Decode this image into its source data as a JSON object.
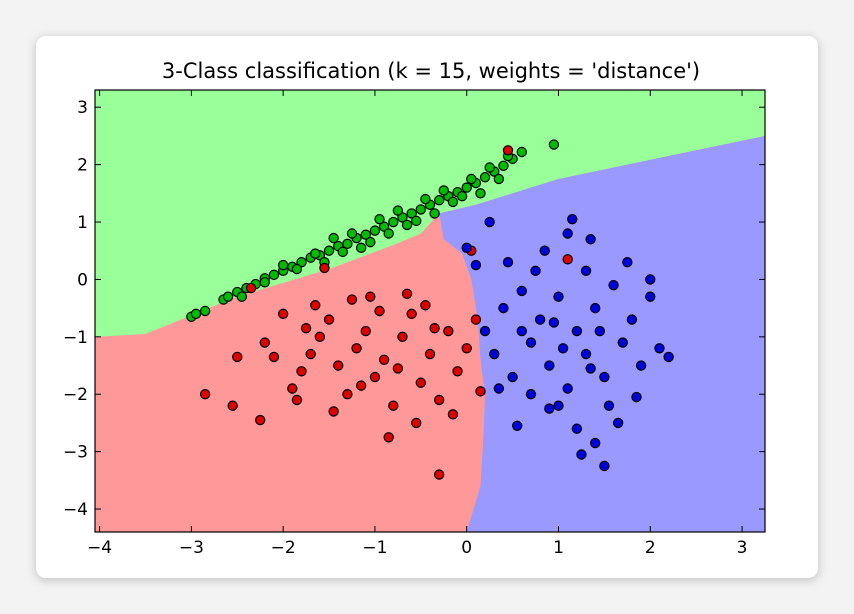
{
  "chart_data": {
    "type": "scatter",
    "title": "3-Class classification (k = 15, weights = 'distance')",
    "xlabel": "",
    "ylabel": "",
    "xlim": [
      -4.05,
      3.25
    ],
    "ylim": [
      -4.4,
      3.3
    ],
    "x_ticks": [
      "−4",
      "−3",
      "−2",
      "−1",
      "0",
      "1",
      "2",
      "3"
    ],
    "y_ticks": [
      "3",
      "2",
      "1",
      "0",
      "−1",
      "−2",
      "−3",
      "−4"
    ],
    "grid": false,
    "legend": "none",
    "region_colors": {
      "red": "#ff9999",
      "green": "#99ff99",
      "blue": "#9999ff"
    },
    "series": [
      {
        "color": "#00bb00",
        "points": [
          [
            -3.0,
            -0.65
          ],
          [
            -2.95,
            -0.6
          ],
          [
            -2.85,
            -0.55
          ],
          [
            -2.65,
            -0.35
          ],
          [
            -2.5,
            -0.22
          ],
          [
            -2.4,
            -0.15
          ],
          [
            -2.3,
            -0.08
          ],
          [
            -2.2,
            0.02
          ],
          [
            -2.1,
            0.08
          ],
          [
            -2.0,
            0.15
          ],
          [
            -1.9,
            0.22
          ],
          [
            -1.8,
            0.3
          ],
          [
            -1.7,
            0.38
          ],
          [
            -1.6,
            0.42
          ],
          [
            -1.5,
            0.5
          ],
          [
            -1.4,
            0.58
          ],
          [
            -1.3,
            0.62
          ],
          [
            -1.2,
            0.72
          ],
          [
            -1.1,
            0.78
          ],
          [
            -1.0,
            0.85
          ],
          [
            -0.9,
            0.92
          ],
          [
            -0.8,
            1.0
          ],
          [
            -0.7,
            1.08
          ],
          [
            -0.6,
            1.15
          ],
          [
            -0.5,
            1.22
          ],
          [
            -0.4,
            1.3
          ],
          [
            -0.3,
            1.38
          ],
          [
            -0.2,
            1.45
          ],
          [
            -0.1,
            1.52
          ],
          [
            0.0,
            1.6
          ],
          [
            0.1,
            1.68
          ],
          [
            0.2,
            1.78
          ],
          [
            0.3,
            1.88
          ],
          [
            0.4,
            1.98
          ],
          [
            0.5,
            2.1
          ],
          [
            0.6,
            2.22
          ],
          [
            0.95,
            2.35
          ],
          [
            -2.6,
            -0.3
          ],
          [
            -2.45,
            -0.3
          ],
          [
            -2.2,
            -0.05
          ],
          [
            -2.0,
            0.25
          ],
          [
            -1.85,
            0.18
          ],
          [
            -1.65,
            0.45
          ],
          [
            -1.55,
            0.3
          ],
          [
            -1.35,
            0.48
          ],
          [
            -1.25,
            0.8
          ],
          [
            -1.05,
            0.65
          ],
          [
            -0.95,
            1.05
          ],
          [
            -0.85,
            0.8
          ],
          [
            -0.75,
            1.2
          ],
          [
            -0.65,
            0.95
          ],
          [
            -0.45,
            1.4
          ],
          [
            -0.35,
            1.15
          ],
          [
            -0.25,
            1.55
          ],
          [
            -0.15,
            1.35
          ],
          [
            0.05,
            1.75
          ],
          [
            0.15,
            1.5
          ],
          [
            0.25,
            1.95
          ],
          [
            0.35,
            1.75
          ],
          [
            0.45,
            2.15
          ],
          [
            -1.45,
            0.72
          ],
          [
            -1.15,
            0.55
          ],
          [
            -0.55,
            1.02
          ],
          [
            -0.05,
            1.45
          ]
        ]
      },
      {
        "color": "#dd0000",
        "points": [
          [
            -2.85,
            -2.0
          ],
          [
            -2.55,
            -2.2
          ],
          [
            -2.25,
            -2.45
          ],
          [
            -2.5,
            -1.35
          ],
          [
            -2.2,
            -1.1
          ],
          [
            -2.0,
            -0.6
          ],
          [
            -1.9,
            -1.9
          ],
          [
            -1.8,
            -1.6
          ],
          [
            -1.7,
            -1.3
          ],
          [
            -1.6,
            -1.0
          ],
          [
            -1.5,
            -0.7
          ],
          [
            -1.4,
            -1.5
          ],
          [
            -1.3,
            -2.0
          ],
          [
            -1.2,
            -1.2
          ],
          [
            -1.1,
            -0.9
          ],
          [
            -1.0,
            -1.7
          ],
          [
            -0.9,
            -1.4
          ],
          [
            -0.8,
            -2.2
          ],
          [
            -0.7,
            -1.0
          ],
          [
            -0.6,
            -0.6
          ],
          [
            -0.5,
            -1.8
          ],
          [
            -0.4,
            -1.3
          ],
          [
            -0.3,
            -2.1
          ],
          [
            -0.2,
            -0.9
          ],
          [
            -0.1,
            -1.6
          ],
          [
            0.0,
            -1.2
          ],
          [
            0.1,
            -0.7
          ],
          [
            -1.65,
            -0.45
          ],
          [
            -1.25,
            -0.35
          ],
          [
            -0.95,
            -0.55
          ],
          [
            -0.65,
            -0.25
          ],
          [
            -0.85,
            -2.75
          ],
          [
            -0.55,
            -2.5
          ],
          [
            -0.3,
            -3.4
          ],
          [
            -2.35,
            -0.15
          ],
          [
            -1.45,
            -2.3
          ],
          [
            -1.15,
            -1.85
          ],
          [
            -0.75,
            -1.55
          ],
          [
            -0.45,
            -0.45
          ],
          [
            -0.15,
            -2.35
          ],
          [
            0.05,
            0.5
          ],
          [
            0.45,
            2.25
          ],
          [
            1.1,
            0.35
          ],
          [
            -1.55,
            0.2
          ],
          [
            -2.1,
            -1.35
          ],
          [
            -1.75,
            -0.85
          ],
          [
            -1.05,
            -0.3
          ],
          [
            -0.35,
            -0.85
          ],
          [
            0.15,
            -1.95
          ],
          [
            -1.85,
            -2.1
          ]
        ]
      },
      {
        "color": "#0000dd",
        "points": [
          [
            0.2,
            -0.9
          ],
          [
            0.3,
            -1.3
          ],
          [
            0.4,
            -0.5
          ],
          [
            0.5,
            -1.7
          ],
          [
            0.6,
            -0.2
          ],
          [
            0.7,
            -1.1
          ],
          [
            0.8,
            -0.7
          ],
          [
            0.9,
            -1.5
          ],
          [
            1.0,
            -0.3
          ],
          [
            1.1,
            -1.9
          ],
          [
            1.2,
            -0.9
          ],
          [
            1.3,
            -1.3
          ],
          [
            1.4,
            -0.5
          ],
          [
            1.5,
            -1.7
          ],
          [
            1.6,
            -0.1
          ],
          [
            1.7,
            -1.1
          ],
          [
            1.8,
            -0.7
          ],
          [
            1.9,
            -1.5
          ],
          [
            2.0,
            -0.3
          ],
          [
            2.1,
            -1.2
          ],
          [
            2.2,
            -1.35
          ],
          [
            0.25,
            1.0
          ],
          [
            0.45,
            0.3
          ],
          [
            0.85,
            0.5
          ],
          [
            1.15,
            1.05
          ],
          [
            1.35,
            0.7
          ],
          [
            0.55,
            -2.55
          ],
          [
            0.9,
            -2.25
          ],
          [
            1.2,
            -2.6
          ],
          [
            1.25,
            -3.05
          ],
          [
            1.5,
            -3.25
          ],
          [
            1.4,
            -2.85
          ],
          [
            1.65,
            -2.5
          ],
          [
            1.85,
            -2.05
          ],
          [
            2.0,
            0.0
          ],
          [
            0.7,
            -2.0
          ],
          [
            1.0,
            -2.2
          ],
          [
            1.55,
            -2.2
          ],
          [
            0.35,
            -1.9
          ],
          [
            0.0,
            0.55
          ],
          [
            0.1,
            0.25
          ],
          [
            1.1,
            0.8
          ],
          [
            0.75,
            0.15
          ],
          [
            1.3,
            0.15
          ],
          [
            1.75,
            0.3
          ],
          [
            0.6,
            -0.9
          ],
          [
            1.05,
            -1.2
          ],
          [
            1.45,
            -0.9
          ],
          [
            0.95,
            -0.75
          ],
          [
            1.35,
            -1.55
          ]
        ]
      }
    ]
  }
}
